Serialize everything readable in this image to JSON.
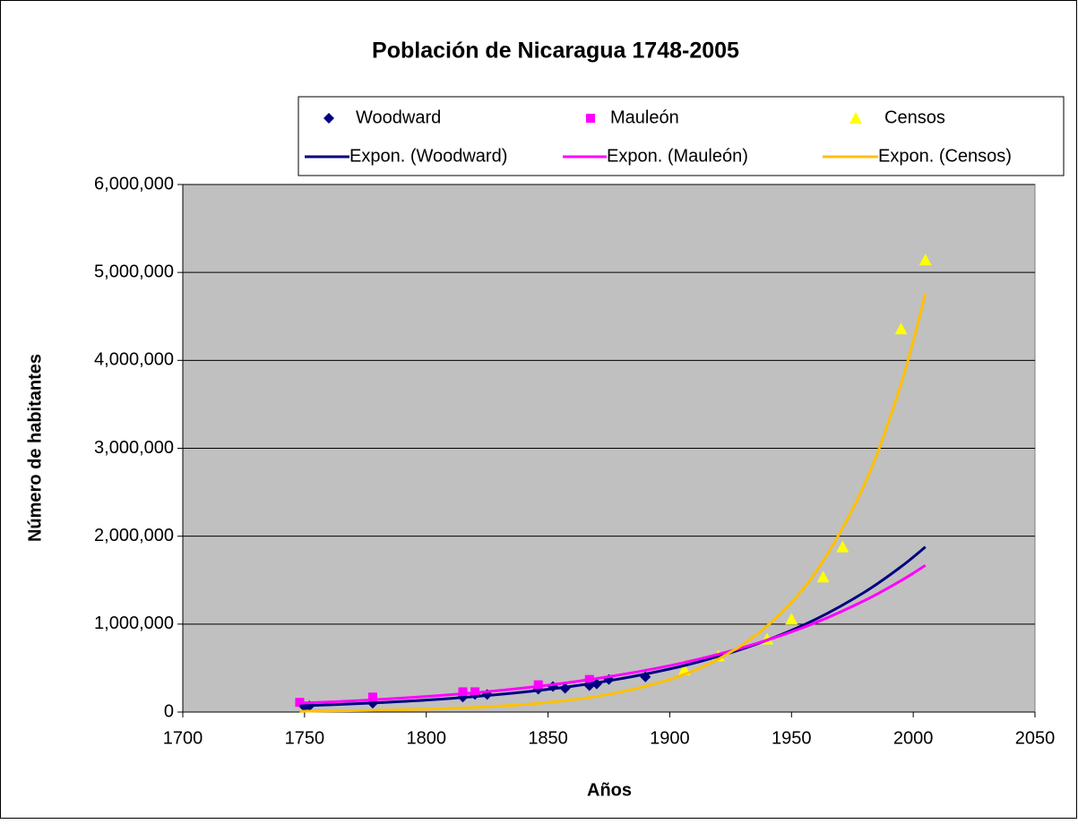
{
  "chart_data": {
    "type": "scatter",
    "title": "Población de Nicaragua 1748-2005",
    "x_label": "Años",
    "y_label": "Número de habitantes",
    "xlim": [
      1700,
      2050
    ],
    "xticks": [
      1700,
      1750,
      1800,
      1850,
      1900,
      1950,
      2000,
      2050
    ],
    "ylim": [
      0,
      6000000
    ],
    "yticks": [
      0,
      {
        "value": 1000000,
        "label": "1,000,000"
      },
      {
        "value": 2000000,
        "label": "2,000,000"
      },
      {
        "value": 3000000,
        "label": "3,000,000"
      },
      {
        "value": 4000000,
        "label": "4,000,000"
      },
      {
        "value": 5000000,
        "label": "5,000,000"
      },
      {
        "value": 6000000,
        "label": "6,000,000"
      }
    ],
    "grid": true,
    "plot_background": "#c0c0c0",
    "series": [
      {
        "name": "Woodward",
        "color": "#000080",
        "marker": "diamond",
        "x": [
          1750,
          1752,
          1778,
          1815,
          1820,
          1825,
          1846,
          1852,
          1857,
          1867,
          1870,
          1875,
          1890
        ],
        "values": [
          60000,
          70000,
          100000,
          170000,
          200000,
          200000,
          260000,
          290000,
          270000,
          300000,
          320000,
          370000,
          400000
        ]
      },
      {
        "name": "Mauleón",
        "color": "#ff00ff",
        "marker": "square",
        "x": [
          1748,
          1778,
          1815,
          1820,
          1846,
          1867
        ],
        "values": [
          110000,
          170000,
          230000,
          230000,
          310000,
          370000
        ]
      },
      {
        "name": "Censos",
        "color": "#ffff00",
        "marker": "triangle",
        "x": [
          1906,
          1920,
          1940,
          1950,
          1963,
          1971,
          1995,
          2005
        ],
        "values": [
          480000,
          638000,
          830000,
          1057000,
          1536000,
          1878000,
          4357000,
          5142000
        ]
      },
      {
        "name": "Expon. (Woodward)",
        "color": "#000080",
        "line": true,
        "x": [
          1748,
          1775,
          1800,
          1825,
          1850,
          1875,
          1900,
          1920,
          1940,
          1960,
          1980,
          1995,
          2005
        ],
        "values": [
          70000,
          99000,
          136000,
          188000,
          258000,
          356000,
          490000,
          633000,
          818000,
          1056000,
          1364000,
          1653000,
          1878000
        ]
      },
      {
        "name": "Expon. (Mauleón)",
        "color": "#ff00ff",
        "line": true,
        "x": [
          1748,
          1775,
          1800,
          1825,
          1850,
          1875,
          1900,
          1920,
          1940,
          1960,
          1980,
          1995,
          2005
        ],
        "values": [
          100000,
          134000,
          177000,
          232000,
          306000,
          402000,
          528000,
          657000,
          818000,
          1018000,
          1268000,
          1495000,
          1668000
        ]
      },
      {
        "name": "Expon. (Censos)",
        "color": "#ffc000",
        "line": true,
        "x": [
          1748,
          1775,
          1800,
          1825,
          1850,
          1875,
          1900,
          1920,
          1940,
          1960,
          1980,
          1995,
          2005
        ],
        "values": [
          9200,
          17800,
          32700,
          59900,
          110000,
          202000,
          371000,
          603000,
          980000,
          1594000,
          2591000,
          3731000,
          4757000
        ]
      }
    ]
  }
}
